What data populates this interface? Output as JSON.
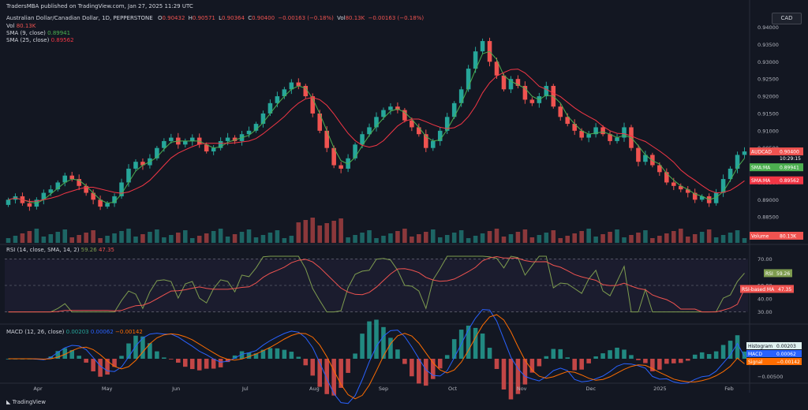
{
  "publish_line": "TradersMBA published on TradingView.com, Jan 27, 2025 11:29 UTC",
  "currency_button": "CAD",
  "main_legend": {
    "symbol": "Australian Dollar/Canadian Dollar, 1D, PEPPERSTONE",
    "open": "O",
    "open_val": "0.90432",
    "high": "H",
    "high_val": "0.90571",
    "low": "L",
    "low_val": "0.90364",
    "close": "C",
    "close_val": "0.90400",
    "change": "−0.00163 (−0.18%)",
    "vol_inline": "Vol",
    "vol_inline_val": "80.13K",
    "vol_change": "−0.00163 (−0.18%)"
  },
  "vol_line": {
    "label": "Vol",
    "value": "80.13K"
  },
  "sma9_line": {
    "label": "SMA (9, close)",
    "value": "0.89941"
  },
  "sma25_line": {
    "label": "SMA (25, close)",
    "value": "0.89562"
  },
  "price_axis": [
    "0.94000",
    "0.93500",
    "0.93000",
    "0.92500",
    "0.92000",
    "0.91500",
    "0.91000",
    "0.90500",
    "0.90000",
    "0.89500",
    "0.89000",
    "0.88500",
    "0.88000"
  ],
  "price_tags": {
    "symbol": {
      "label": "AUDCAD",
      "value": "0.90400",
      "sub": "10:29:15"
    },
    "sma9": {
      "label": "SMA:MA",
      "value": "0.89941"
    },
    "sma25": {
      "label": "SMA:MA",
      "value": "0.89562"
    },
    "volume": {
      "label": "Volume",
      "value": "80.13K"
    }
  },
  "rsi_legend": {
    "label": "RSI (14, close, SMA, 14, 2)",
    "rsi": "59.26",
    "ma": "47.35"
  },
  "rsi_axis": [
    "70.00",
    "50.00",
    "40.00",
    "30.00"
  ],
  "rsi_tags": {
    "rsi": {
      "label": "RSI",
      "value": "59.26"
    },
    "ma": {
      "label": "RSI-based MA",
      "value": "47.35"
    }
  },
  "macd_legend": {
    "label": "MACD (12, 26, close)",
    "hist": "0.00203",
    "macd": "0.00062",
    "signal": "−0.00142"
  },
  "macd_tags": {
    "histogram": {
      "label": "Histogram",
      "value": "0.00203"
    },
    "macd": {
      "label": "MACD",
      "value": "0.00062"
    },
    "signal": {
      "label": "Signal",
      "value": "−0.00142"
    }
  },
  "macd_axis": [
    "−0.00500"
  ],
  "time_axis": [
    "Apr",
    "May",
    "Jun",
    "Jul",
    "Aug",
    "Sep",
    "Oct",
    "Nov",
    "Dec",
    "2025",
    "Feb"
  ],
  "footer": "TradingView",
  "colors": {
    "up": "#26a69a",
    "down": "#ef5350",
    "sma9": "#4caf50",
    "sma25": "#f23645",
    "rsi": "#7e9c4f",
    "rsi_ma": "#ef5350",
    "macd": "#2962ff",
    "signal": "#ff6d00",
    "bg": "#131722"
  },
  "chart_data": {
    "type": "line",
    "price_series": [
      0.89,
      0.891,
      0.889,
      0.888,
      0.89,
      0.892,
      0.893,
      0.895,
      0.897,
      0.896,
      0.894,
      0.892,
      0.89,
      0.888,
      0.889,
      0.891,
      0.895,
      0.899,
      0.901,
      0.9,
      0.902,
      0.905,
      0.907,
      0.908,
      0.906,
      0.907,
      0.908,
      0.906,
      0.904,
      0.905,
      0.907,
      0.908,
      0.907,
      0.909,
      0.91,
      0.912,
      0.915,
      0.918,
      0.92,
      0.922,
      0.924,
      0.923,
      0.92,
      0.915,
      0.91,
      0.905,
      0.9,
      0.899,
      0.902,
      0.906,
      0.909,
      0.911,
      0.914,
      0.916,
      0.917,
      0.916,
      0.913,
      0.911,
      0.909,
      0.905,
      0.907,
      0.91,
      0.914,
      0.918,
      0.922,
      0.928,
      0.933,
      0.936,
      0.93,
      0.926,
      0.922,
      0.925,
      0.923,
      0.919,
      0.918,
      0.92,
      0.923,
      0.917,
      0.914,
      0.912,
      0.91,
      0.908,
      0.909,
      0.911,
      0.909,
      0.907,
      0.908,
      0.911,
      0.905,
      0.901,
      0.903,
      0.9,
      0.898,
      0.895,
      0.894,
      0.893,
      0.892,
      0.89,
      0.891,
      0.889,
      0.892,
      0.896,
      0.899,
      0.903,
      0.904
    ],
    "sma9_series_end": 0.89941,
    "sma25_series_end": 0.89562,
    "last_close": 0.904,
    "rsi_last": 59.26,
    "rsi_ma_last": 47.35,
    "macd_last": 0.00062,
    "signal_last": -0.00142,
    "hist_last": 0.00203
  }
}
